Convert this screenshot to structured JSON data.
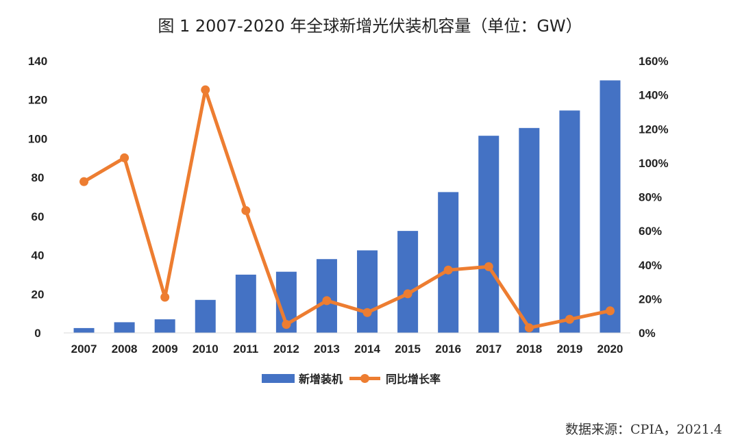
{
  "title": "图 1 2007-2020 年全球新增光伏装机容量（单位：GW）",
  "source": "数据来源：CPIA，2021.4",
  "colors": {
    "bar": "#4472C4",
    "line": "#ED7D31",
    "axis": "#d9d9d9",
    "text": "#222222"
  },
  "chart_data": {
    "type": "bar",
    "categories": [
      "2007",
      "2008",
      "2009",
      "2010",
      "2011",
      "2012",
      "2013",
      "2014",
      "2015",
      "2016",
      "2017",
      "2018",
      "2019",
      "2020"
    ],
    "series": [
      {
        "name": "新增装机",
        "type": "bar",
        "axis": "left",
        "unit": "GW",
        "values": [
          2.5,
          5.5,
          7,
          17,
          30,
          31.5,
          38,
          42.5,
          52.5,
          72.5,
          101.5,
          105.5,
          114.5,
          130
        ]
      },
      {
        "name": "同比增长率",
        "type": "line",
        "axis": "right",
        "unit": "%",
        "values": [
          89,
          103,
          21,
          143,
          72,
          5,
          19,
          12,
          23,
          37,
          39,
          3,
          8,
          13
        ]
      }
    ],
    "y_left": {
      "ylim": [
        0,
        140
      ],
      "ticks": [
        "0",
        "20",
        "40",
        "60",
        "80",
        "100",
        "120",
        "140"
      ]
    },
    "y_right": {
      "ylim": [
        0,
        160
      ],
      "ticks": [
        "0%",
        "20%",
        "40%",
        "60%",
        "80%",
        "100%",
        "120%",
        "140%",
        "160%"
      ]
    },
    "grid": false,
    "legend_position": "bottom"
  }
}
